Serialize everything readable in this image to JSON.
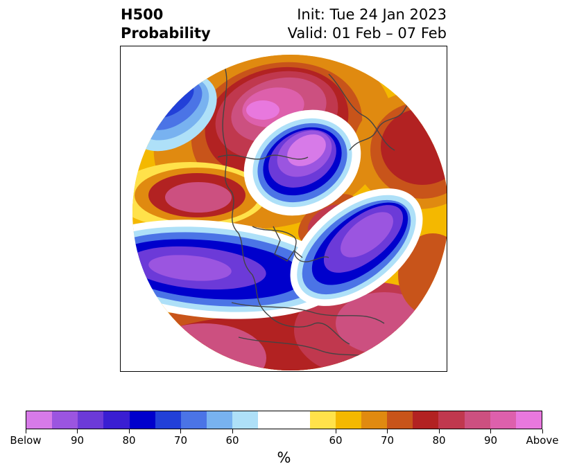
{
  "title": {
    "left_line1": "H500",
    "left_line2": "Probability",
    "right_line1": "Init: Tue 24 Jan 2023",
    "right_line2": "Valid: 01 Feb – 07 Feb"
  },
  "colorbar": {
    "segments": [
      "#d77ae8",
      "#9b55e0",
      "#6c3ad8",
      "#3a1ed2",
      "#0000cc",
      "#2240d8",
      "#4b74e6",
      "#78b2f0",
      "#aee0f8",
      "#ffffff",
      "#ffe24a",
      "#f4b800",
      "#e08a10",
      "#c8541a",
      "#b22222",
      "#c0384e",
      "#cc5080",
      "#dd60ac",
      "#e878de"
    ],
    "tick_labels": [
      "Below",
      "90",
      "80",
      "70",
      "60",
      "60",
      "70",
      "80",
      "90",
      "Above"
    ],
    "unit_label": "%"
  },
  "map": {
    "projection": "north-polar-stereographic",
    "coastline_color": "#444444"
  }
}
